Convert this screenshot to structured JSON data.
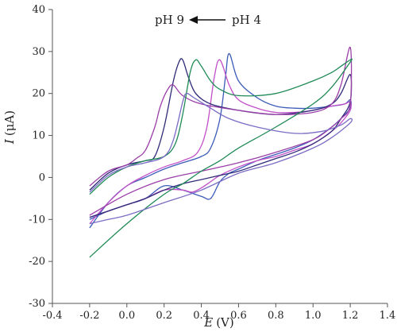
{
  "chart_data": {
    "type": "line",
    "xlabel_var": "E",
    "xlabel_unit": "(V)",
    "ylabel_var": "I",
    "ylabel_unit": "(μA)",
    "xlim": [
      -0.4,
      1.4
    ],
    "ylim": [
      -30,
      40
    ],
    "xticks": [
      "-0.4",
      "-0.2",
      "0.0",
      "0.2",
      "0.4",
      "0.6",
      "0.8",
      "1.0",
      "1.2",
      "1.4"
    ],
    "yticks": [
      "-30",
      "-20",
      "-10",
      "0",
      "10",
      "20",
      "30",
      "40"
    ],
    "grid": false,
    "legend": "none",
    "annotation": {
      "left": "pH 9",
      "right": "pH 4",
      "arrow": "right-to-left"
    },
    "series": [
      {
        "color": "#3b5bb8",
        "x": [
          -0.2,
          -0.1,
          0.0,
          0.1,
          0.2,
          0.3,
          0.4,
          0.45,
          0.5,
          0.53,
          0.55,
          0.6,
          0.7,
          0.8,
          0.9,
          1.0,
          1.1,
          1.17,
          1.2,
          1.2,
          1.15,
          1.1,
          1.0,
          0.9,
          0.8,
          0.7,
          0.6,
          0.55,
          0.5,
          0.45,
          0.4,
          0.3,
          0.2,
          0.1,
          0.0,
          -0.1,
          -0.2
        ],
        "y": [
          -12,
          -6,
          -2,
          0,
          2,
          3.5,
          5,
          7,
          14,
          24,
          29.5,
          23,
          19,
          17,
          16.5,
          16.5,
          17,
          17.5,
          18.5,
          16.5,
          14,
          12,
          9,
          7,
          5.5,
          4,
          2,
          1,
          -1,
          -5,
          -4.5,
          -3,
          -2,
          -5,
          -6.5,
          -8,
          -10
        ]
      },
      {
        "color": "#c14fc8",
        "x": [
          -0.2,
          -0.1,
          0.0,
          0.1,
          0.2,
          0.3,
          0.38,
          0.43,
          0.47,
          0.5,
          0.55,
          0.6,
          0.7,
          0.8,
          0.9,
          1.0,
          1.1,
          1.17,
          1.2,
          1.2,
          1.15,
          1.1,
          1.0,
          0.9,
          0.8,
          0.7,
          0.6,
          0.5,
          0.45,
          0.4,
          0.35,
          0.3,
          0.2,
          0.1,
          0.0,
          -0.1,
          -0.2
        ],
        "y": [
          -11,
          -6,
          -2,
          0.5,
          2.5,
          4,
          6,
          12,
          24,
          28,
          22,
          18.5,
          16.5,
          15.5,
          15.5,
          16,
          17,
          17.5,
          18,
          16,
          13,
          11,
          8,
          6.5,
          5,
          4,
          2.5,
          0.5,
          -1,
          -2.5,
          -3.5,
          -3,
          -3,
          -5,
          -6.5,
          -8,
          -9.5
        ]
      },
      {
        "color": "#2e2a78",
        "x": [
          -0.2,
          -0.1,
          0.0,
          0.1,
          0.15,
          0.2,
          0.25,
          0.28,
          0.3,
          0.33,
          0.37,
          0.45,
          0.6,
          0.8,
          1.0,
          1.1,
          1.15,
          1.2,
          1.2,
          1.15,
          1.1,
          1.0,
          0.9,
          0.8,
          0.7,
          0.6,
          0.5,
          0.4,
          0.3,
          0.2,
          0.1,
          0.0,
          -0.1,
          -0.2
        ],
        "y": [
          -3,
          1,
          3,
          4,
          5,
          12,
          23,
          27.5,
          28,
          24,
          20,
          17.5,
          16,
          15,
          16,
          17.5,
          20,
          24.5,
          18,
          14,
          11,
          8,
          6,
          4.5,
          3,
          1.5,
          0.5,
          -0.5,
          -1.5,
          -3,
          -5,
          -6.5,
          -8,
          -9.5
        ]
      },
      {
        "color": "#9b3fa8",
        "x": [
          -0.2,
          -0.1,
          0.0,
          0.05,
          0.1,
          0.15,
          0.18,
          0.22,
          0.25,
          0.3,
          0.4,
          0.6,
          0.8,
          1.0,
          1.1,
          1.15,
          1.2,
          1.2,
          1.15,
          1.1,
          1.0,
          0.8,
          0.6,
          0.4,
          0.2,
          0.0,
          -0.2
        ],
        "y": [
          -2,
          1.5,
          3,
          4.5,
          6.5,
          12,
          17,
          21,
          22,
          19.5,
          17.5,
          16,
          15,
          15.5,
          17.5,
          22,
          31,
          17.5,
          14,
          12,
          9,
          6,
          3.5,
          1.5,
          -0.5,
          -4,
          -9
        ]
      },
      {
        "color": "#1f8a55",
        "x": [
          -0.2,
          -0.1,
          0.0,
          0.1,
          0.2,
          0.26,
          0.3,
          0.34,
          0.37,
          0.4,
          0.45,
          0.5,
          0.6,
          0.8,
          1.0,
          1.1,
          1.15,
          1.2,
          1.2,
          1.1,
          1.0,
          0.8,
          0.6,
          0.5,
          0.4,
          0.3,
          0.2,
          0.0,
          -0.2
        ],
        "y": [
          -4,
          0,
          2.5,
          4,
          5,
          8,
          15,
          25,
          28,
          26.5,
          23,
          21,
          19.5,
          20,
          23,
          25,
          26.5,
          28,
          27.5,
          21.5,
          17.5,
          12,
          7,
          4,
          1.5,
          -1.5,
          -4,
          -11,
          -19
        ]
      },
      {
        "color": "#7a6cc4",
        "x": [
          -0.2,
          -0.1,
          0.0,
          0.1,
          0.2,
          0.25,
          0.3,
          0.32,
          0.36,
          0.45,
          0.55,
          0.7,
          0.9,
          1.05,
          1.15,
          1.2,
          1.2,
          1.1,
          1.0,
          0.8,
          0.6,
          0.4,
          0.2,
          0.0,
          -0.1,
          -0.2
        ],
        "y": [
          -3.5,
          0.5,
          2.5,
          3.5,
          5,
          9,
          18,
          20,
          19,
          16.5,
          14,
          12,
          10.5,
          11,
          12.5,
          14,
          13,
          9.5,
          7,
          3.5,
          1,
          -3,
          -6,
          -9,
          -10,
          -11
        ]
      }
    ]
  }
}
